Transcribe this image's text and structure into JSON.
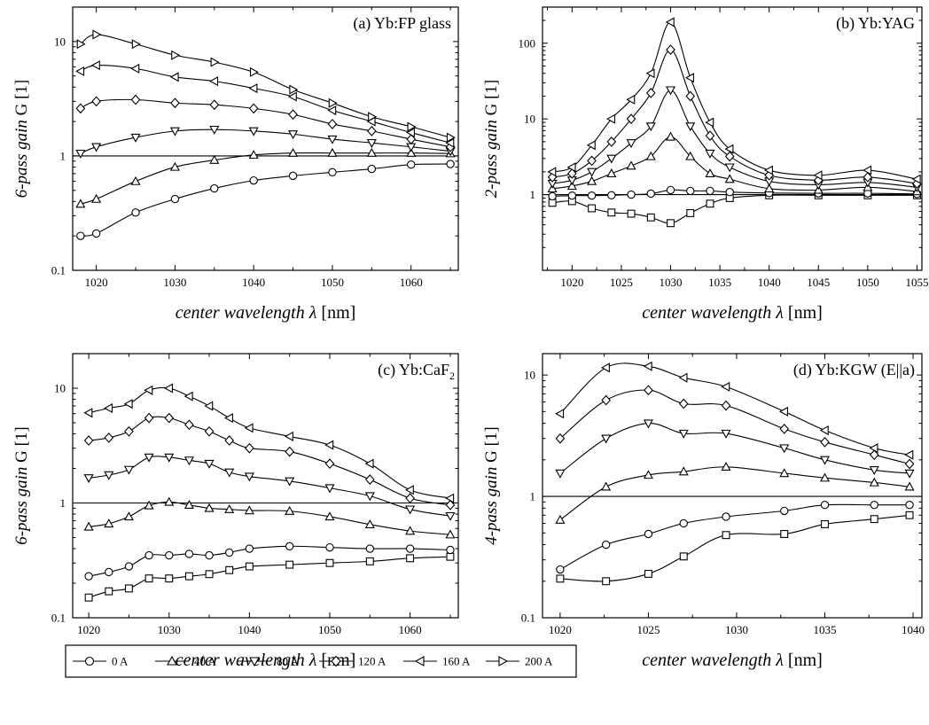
{
  "marker_legend": [
    {
      "label": "0 A",
      "marker": "circle"
    },
    {
      "label": "40 A",
      "marker": "triangle-up"
    },
    {
      "label": "80 A",
      "marker": "triangle-down"
    },
    {
      "label": "120 A",
      "marker": "diamond"
    },
    {
      "label": "160 A",
      "marker": "triangle-left"
    },
    {
      "label": "200 A",
      "marker": "triangle-right"
    }
  ],
  "chart_data": [
    {
      "type": "line",
      "title": "(a) Yb:FP glass",
      "xlabel": "center wavelength  λ [nm]",
      "ylabel_italic": "6-pass gain",
      "ylabel_plain": "G [1]",
      "xlim": [
        1017,
        1066
      ],
      "ylim": [
        0.1,
        20
      ],
      "yscale": "log",
      "xticks": [
        1020,
        1030,
        1040,
        1050,
        1060
      ],
      "yticks": [
        0.1,
        1,
        10
      ],
      "ytick_labels": [
        "0.1",
        "1",
        "10"
      ],
      "reference_line": 1,
      "series": [
        {
          "name": "0 A",
          "marker": "circle",
          "x": [
            1018,
            1020,
            1025,
            1030,
            1035,
            1040,
            1045,
            1050,
            1055,
            1060,
            1065
          ],
          "values": [
            0.2,
            0.21,
            0.32,
            0.42,
            0.52,
            0.61,
            0.67,
            0.72,
            0.77,
            0.84,
            0.85
          ]
        },
        {
          "name": "40 A",
          "marker": "triangle-up",
          "x": [
            1018,
            1020,
            1025,
            1030,
            1035,
            1040,
            1045,
            1050,
            1055,
            1060,
            1065
          ],
          "values": [
            0.38,
            0.42,
            0.6,
            0.8,
            0.92,
            1.02,
            1.06,
            1.06,
            1.06,
            1.06,
            1.05
          ]
        },
        {
          "name": "80 A",
          "marker": "triangle-down",
          "x": [
            1018,
            1020,
            1025,
            1030,
            1035,
            1040,
            1045,
            1050,
            1055,
            1060,
            1065
          ],
          "values": [
            1.05,
            1.2,
            1.45,
            1.65,
            1.7,
            1.65,
            1.55,
            1.4,
            1.3,
            1.2,
            1.1
          ]
        },
        {
          "name": "120 A",
          "marker": "diamond",
          "x": [
            1018,
            1020,
            1025,
            1030,
            1035,
            1040,
            1045,
            1050,
            1055,
            1060,
            1065
          ],
          "values": [
            2.6,
            3.0,
            3.1,
            2.9,
            2.8,
            2.6,
            2.3,
            1.9,
            1.65,
            1.4,
            1.2
          ]
        },
        {
          "name": "160 A",
          "marker": "triangle-left",
          "x": [
            1018,
            1020,
            1025,
            1030,
            1035,
            1040,
            1045,
            1050,
            1055,
            1060,
            1065
          ],
          "values": [
            5.5,
            6.2,
            5.8,
            4.9,
            4.5,
            3.9,
            3.3,
            2.5,
            2.0,
            1.6,
            1.3
          ]
        },
        {
          "name": "200 A",
          "marker": "triangle-right",
          "x": [
            1018,
            1020,
            1025,
            1030,
            1035,
            1040,
            1045,
            1050,
            1055,
            1060,
            1065
          ],
          "values": [
            9.5,
            11.5,
            9.5,
            7.6,
            6.6,
            5.4,
            3.8,
            2.9,
            2.2,
            1.8,
            1.45
          ]
        }
      ]
    },
    {
      "type": "line",
      "title": "(b) Yb:YAG",
      "xlabel": "center wavelength  λ [nm]",
      "ylabel_italic": "2-pass gain",
      "ylabel_plain": "G [1]",
      "xlim": [
        1017,
        1055.5
      ],
      "ylim": [
        0.1,
        300
      ],
      "yscale": "log",
      "xticks": [
        1020,
        1025,
        1030,
        1035,
        1040,
        1045,
        1050,
        1055
      ],
      "yticks": [
        1,
        10,
        100
      ],
      "ytick_labels": [
        "1",
        "10",
        "100"
      ],
      "reference_line": 1,
      "series": [
        {
          "name": "0 A",
          "marker": "square",
          "x": [
            1018,
            1020,
            1022,
            1024,
            1026,
            1028,
            1030,
            1032,
            1034,
            1036,
            1040,
            1045,
            1050,
            1055
          ],
          "values": [
            0.78,
            0.82,
            0.66,
            0.58,
            0.56,
            0.5,
            0.42,
            0.57,
            0.76,
            0.9,
            0.98,
            0.98,
            0.98,
            0.98
          ]
        },
        {
          "name": "0 A",
          "marker": "circle",
          "x": [
            1018,
            1020,
            1022,
            1024,
            1026,
            1028,
            1030,
            1032,
            1034,
            1036,
            1040,
            1045,
            1050,
            1055
          ],
          "values": [
            0.95,
            0.97,
            0.97,
            0.98,
            1.0,
            1.03,
            1.15,
            1.12,
            1.12,
            1.08,
            1.05,
            1.04,
            1.04,
            1.02
          ]
        },
        {
          "name": "40 A",
          "marker": "triangle-up",
          "x": [
            1018,
            1020,
            1022,
            1024,
            1026,
            1028,
            1030,
            1032,
            1034,
            1036,
            1040,
            1045,
            1050,
            1055
          ],
          "values": [
            1.2,
            1.3,
            1.5,
            1.9,
            2.4,
            3.2,
            5.8,
            3.2,
            1.9,
            1.6,
            1.2,
            1.15,
            1.25,
            1.1
          ]
        },
        {
          "name": "80 A",
          "marker": "triangle-down",
          "x": [
            1018,
            1020,
            1022,
            1024,
            1026,
            1028,
            1030,
            1032,
            1034,
            1036,
            1040,
            1045,
            1050,
            1055
          ],
          "values": [
            1.4,
            1.55,
            2.0,
            3.0,
            4.8,
            8.0,
            24,
            8.0,
            3.5,
            2.3,
            1.5,
            1.35,
            1.45,
            1.25
          ]
        },
        {
          "name": "120 A",
          "marker": "diamond",
          "x": [
            1018,
            1020,
            1022,
            1024,
            1026,
            1028,
            1030,
            1032,
            1034,
            1036,
            1040,
            1045,
            1050,
            1055
          ],
          "values": [
            1.7,
            1.9,
            2.8,
            5.0,
            10,
            22,
            82,
            20,
            6.0,
            3.2,
            1.8,
            1.55,
            1.7,
            1.4
          ]
        },
        {
          "name": "160 A",
          "marker": "triangle-left",
          "x": [
            1018,
            1020,
            1022,
            1024,
            1026,
            1028,
            1030,
            1032,
            1034,
            1036,
            1040,
            1045,
            1050,
            1055
          ],
          "values": [
            2.0,
            2.3,
            4.5,
            10,
            18,
            40,
            190,
            35,
            9.0,
            4.0,
            2.1,
            1.8,
            2.1,
            1.6
          ]
        }
      ]
    },
    {
      "type": "line",
      "title": "(c) Yb:CaF",
      "title_subscript": "2",
      "xlabel": "center wavelength  λ [nm]",
      "ylabel_italic": "6-pass gain",
      "ylabel_plain": "G [1]",
      "xlim": [
        1018,
        1066
      ],
      "ylim": [
        0.1,
        20
      ],
      "yscale": "log",
      "xticks": [
        1020,
        1030,
        1040,
        1050,
        1060
      ],
      "yticks": [
        0.1,
        1,
        10
      ],
      "ytick_labels": [
        "0.1",
        "1",
        "10"
      ],
      "reference_line": 1,
      "series": [
        {
          "name": "0 A",
          "marker": "square",
          "x": [
            1020,
            1022.5,
            1025,
            1027.5,
            1030,
            1032.5,
            1035,
            1037.5,
            1040,
            1045,
            1050,
            1055,
            1060,
            1065
          ],
          "values": [
            0.15,
            0.17,
            0.18,
            0.22,
            0.22,
            0.23,
            0.24,
            0.26,
            0.28,
            0.29,
            0.3,
            0.31,
            0.33,
            0.34
          ]
        },
        {
          "name": "0 A",
          "marker": "circle",
          "x": [
            1020,
            1022.5,
            1025,
            1027.5,
            1030,
            1032.5,
            1035,
            1037.5,
            1040,
            1045,
            1050,
            1055,
            1060,
            1065
          ],
          "values": [
            0.23,
            0.25,
            0.28,
            0.35,
            0.35,
            0.36,
            0.35,
            0.37,
            0.4,
            0.42,
            0.41,
            0.4,
            0.4,
            0.39
          ]
        },
        {
          "name": "40 A",
          "marker": "triangle-up",
          "x": [
            1020,
            1022.5,
            1025,
            1027.5,
            1030,
            1032.5,
            1035,
            1037.5,
            1040,
            1045,
            1050,
            1055,
            1060,
            1065
          ],
          "values": [
            0.62,
            0.66,
            0.76,
            0.95,
            1.02,
            0.96,
            0.9,
            0.88,
            0.86,
            0.85,
            0.76,
            0.65,
            0.57,
            0.53
          ]
        },
        {
          "name": "80 A",
          "marker": "triangle-down",
          "x": [
            1020,
            1022.5,
            1025,
            1027.5,
            1030,
            1032.5,
            1035,
            1037.5,
            1040,
            1045,
            1050,
            1055,
            1060,
            1065
          ],
          "values": [
            1.65,
            1.75,
            1.95,
            2.5,
            2.5,
            2.35,
            2.2,
            1.85,
            1.7,
            1.55,
            1.35,
            1.15,
            0.88,
            0.77
          ]
        },
        {
          "name": "120 A",
          "marker": "diamond",
          "x": [
            1020,
            1022.5,
            1025,
            1027.5,
            1030,
            1032.5,
            1035,
            1037.5,
            1040,
            1045,
            1050,
            1055,
            1060,
            1065
          ],
          "values": [
            3.5,
            3.7,
            4.2,
            5.5,
            5.5,
            4.8,
            4.2,
            3.5,
            3.0,
            2.8,
            2.2,
            1.6,
            1.1,
            0.96
          ]
        },
        {
          "name": "160 A",
          "marker": "triangle-left",
          "x": [
            1020,
            1022.5,
            1025,
            1027.5,
            1030,
            1032.5,
            1035,
            1037.5,
            1040,
            1045,
            1050,
            1055,
            1060,
            1065
          ],
          "values": [
            6.1,
            6.7,
            7.3,
            9.6,
            10.0,
            8.5,
            7.0,
            5.5,
            4.5,
            3.8,
            3.2,
            2.2,
            1.3,
            1.1
          ]
        }
      ]
    },
    {
      "type": "line",
      "title": "(d) Yb:KGW (E||a)",
      "xlabel": "center wavelength  λ [nm]",
      "ylabel_italic": "4-pass gain",
      "ylabel_plain": "G [1]",
      "xlim": [
        1019,
        1040.5
      ],
      "ylim": [
        0.1,
        15
      ],
      "yscale": "log",
      "xticks": [
        1020,
        1025,
        1030,
        1035,
        1040
      ],
      "yticks": [
        0.1,
        1,
        10
      ],
      "ytick_labels": [
        "0.1",
        "1",
        "10"
      ],
      "reference_line": 1,
      "series": [
        {
          "name": "0 A",
          "marker": "square",
          "x": [
            1020,
            1022.6,
            1025,
            1027,
            1029.4,
            1032.7,
            1035,
            1037.8,
            1039.8
          ],
          "values": [
            0.21,
            0.2,
            0.23,
            0.32,
            0.48,
            0.49,
            0.59,
            0.65,
            0.7
          ]
        },
        {
          "name": "0 A",
          "marker": "circle",
          "x": [
            1020,
            1022.6,
            1025,
            1027,
            1029.4,
            1032.7,
            1035,
            1037.8,
            1039.8
          ],
          "values": [
            0.25,
            0.4,
            0.49,
            0.6,
            0.68,
            0.76,
            0.85,
            0.85,
            0.85
          ]
        },
        {
          "name": "40 A",
          "marker": "triangle-up",
          "x": [
            1020,
            1022.6,
            1025,
            1027,
            1029.4,
            1032.7,
            1035,
            1037.8,
            1039.8
          ],
          "values": [
            0.64,
            1.2,
            1.5,
            1.6,
            1.75,
            1.55,
            1.42,
            1.3,
            1.2
          ]
        },
        {
          "name": "80 A",
          "marker": "triangle-down",
          "x": [
            1020,
            1022.6,
            1025,
            1027,
            1029.4,
            1032.7,
            1035,
            1037.8,
            1039.8
          ],
          "values": [
            1.55,
            3.0,
            4.0,
            3.3,
            3.3,
            2.5,
            2.0,
            1.65,
            1.55
          ]
        },
        {
          "name": "120 A",
          "marker": "diamond",
          "x": [
            1020,
            1022.6,
            1025,
            1027,
            1029.4,
            1032.7,
            1035,
            1037.8,
            1039.8
          ],
          "values": [
            3.0,
            6.2,
            7.5,
            5.8,
            5.6,
            3.6,
            2.8,
            2.2,
            1.85
          ]
        },
        {
          "name": "160 A",
          "marker": "triangle-left",
          "x": [
            1020,
            1022.6,
            1025,
            1027,
            1029.4,
            1032.7,
            1035,
            1037.8,
            1039.8
          ],
          "values": [
            4.8,
            11.5,
            11.8,
            9.5,
            8.0,
            5.0,
            3.5,
            2.5,
            2.2
          ]
        }
      ]
    }
  ]
}
